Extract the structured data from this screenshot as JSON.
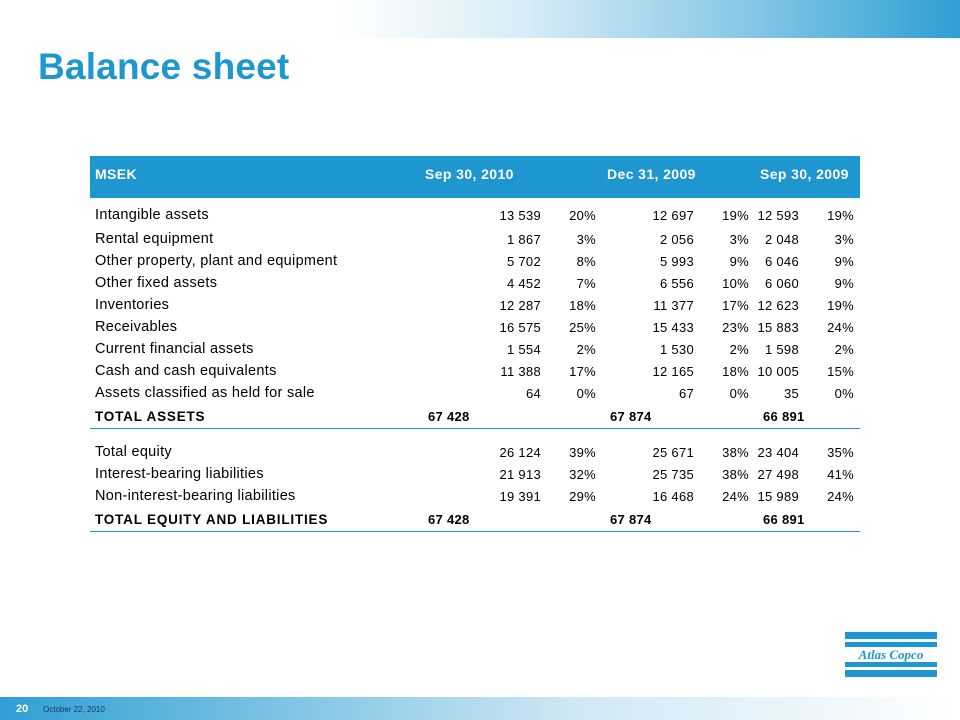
{
  "title": "Balance sheet",
  "table": {
    "headers": [
      "MSEK",
      "Sep 30, 2010",
      "Dec 31, 2009",
      "Sep 30, 2009"
    ],
    "assets": [
      {
        "label": "Intangible assets",
        "v1": "13 539",
        "p1": "20%",
        "v2": "12 697",
        "p2": "19%",
        "v3": "12 593",
        "p3": "19%"
      },
      {
        "label": "Rental equipment",
        "v1": "1 867",
        "p1": "3%",
        "v2": "2 056",
        "p2": "3%",
        "v3": "2 048",
        "p3": "3%"
      },
      {
        "label": "Other property, plant and equipment",
        "v1": "5 702",
        "p1": "8%",
        "v2": "5 993",
        "p2": "9%",
        "v3": "6 046",
        "p3": "9%"
      },
      {
        "label": "Other fixed assets",
        "v1": "4 452",
        "p1": "7%",
        "v2": "6 556",
        "p2": "10%",
        "v3": "6 060",
        "p3": "9%"
      },
      {
        "label": "Inventories",
        "v1": "12 287",
        "p1": "18%",
        "v2": "11 377",
        "p2": "17%",
        "v3": "12 623",
        "p3": "19%"
      },
      {
        "label": "Receivables",
        "v1": "16 575",
        "p1": "25%",
        "v2": "15 433",
        "p2": "23%",
        "v3": "15 883",
        "p3": "24%"
      },
      {
        "label": "Current financial assets",
        "v1": "1 554",
        "p1": "2%",
        "v2": "1 530",
        "p2": "2%",
        "v3": "1 598",
        "p3": "2%"
      },
      {
        "label": "Cash and cash equivalents",
        "v1": "11 388",
        "p1": "17%",
        "v2": "12 165",
        "p2": "18%",
        "v3": "10 005",
        "p3": "15%"
      },
      {
        "label": "Assets classified as held for sale",
        "v1": "64",
        "p1": "0%",
        "v2": "67",
        "p2": "0%",
        "v3": "35",
        "p3": "0%"
      }
    ],
    "total_assets": {
      "label": "TOTAL ASSETS",
      "v1": "67 428",
      "v2": "67 874",
      "v3": "66 891"
    },
    "liabilities": [
      {
        "label": "Total equity",
        "v1": "26 124",
        "p1": "39%",
        "v2": "25 671",
        "p2": "38%",
        "v3": "23 404",
        "p3": "35%"
      },
      {
        "label": "Interest-bearing liabilities",
        "v1": "21 913",
        "p1": "32%",
        "v2": "25 735",
        "p2": "38%",
        "v3": "27 498",
        "p3": "41%"
      },
      {
        "label": "Non-interest-bearing liabilities",
        "v1": "19 391",
        "p1": "29%",
        "v2": "16 468",
        "p2": "24%",
        "v3": "15 989",
        "p3": "24%"
      }
    ],
    "total_equity_liabilities": {
      "label": "TOTAL EQUITY AND LIABILITIES",
      "v1": "67 428",
      "v2": "67 874",
      "v3": "66 891"
    }
  },
  "footer": {
    "page_number": "20",
    "date": "October 22, 2010"
  },
  "logo": {
    "text": "Atlas Copco",
    "color": "#1e97d1"
  },
  "colors": {
    "accent": "#1e97d1"
  }
}
